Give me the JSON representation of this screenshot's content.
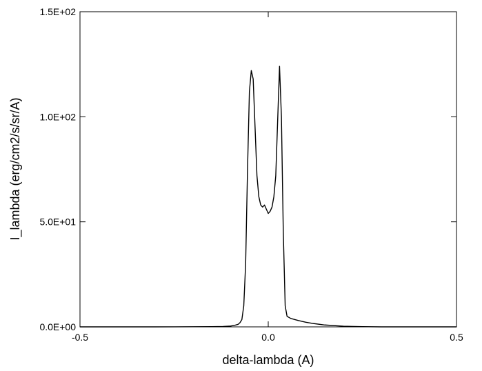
{
  "chart_data": {
    "type": "line",
    "title": "",
    "xlabel": "delta-lambda (A)",
    "ylabel": "I_lambda (erg/cm2/s/sr/A)",
    "xlim": [
      -0.5,
      0.5
    ],
    "ylim": [
      0,
      150
    ],
    "x_ticks": [
      {
        "value": -0.5,
        "label": "-0.5"
      },
      {
        "value": 0.0,
        "label": "0.0"
      },
      {
        "value": 0.5,
        "label": "0.5"
      }
    ],
    "y_ticks": [
      {
        "value": 0,
        "label": "0.0E+00"
      },
      {
        "value": 50,
        "label": "5.0E+01"
      },
      {
        "value": 100,
        "label": "1.0E+02"
      },
      {
        "value": 150,
        "label": "1.5E+02"
      }
    ],
    "grid": false,
    "legend": "none",
    "line_color": "#000000",
    "series": [
      {
        "x": [
          -0.5,
          -0.3,
          -0.15,
          -0.12,
          -0.1,
          -0.09,
          -0.08,
          -0.075,
          -0.07,
          -0.065,
          -0.06,
          -0.055,
          -0.05,
          -0.045,
          -0.04,
          -0.035,
          -0.03,
          -0.025,
          -0.02,
          -0.015,
          -0.01,
          -0.005,
          0.0,
          0.005,
          0.01,
          0.015,
          0.02,
          0.025,
          0.03,
          0.035,
          0.04,
          0.045,
          0.05,
          0.06,
          0.08,
          0.1,
          0.12,
          0.15,
          0.2,
          0.25,
          0.3,
          0.5
        ],
        "y": [
          0,
          0,
          0.1,
          0.2,
          0.4,
          0.7,
          1.2,
          2.0,
          3.5,
          10,
          30,
          75,
          112,
          122,
          118,
          95,
          72,
          62,
          58,
          57,
          58,
          56,
          54,
          55,
          57,
          62,
          72,
          98,
          124,
          100,
          45,
          10,
          5,
          4,
          3,
          2.2,
          1.6,
          0.9,
          0.3,
          0.1,
          0,
          0
        ]
      }
    ]
  }
}
